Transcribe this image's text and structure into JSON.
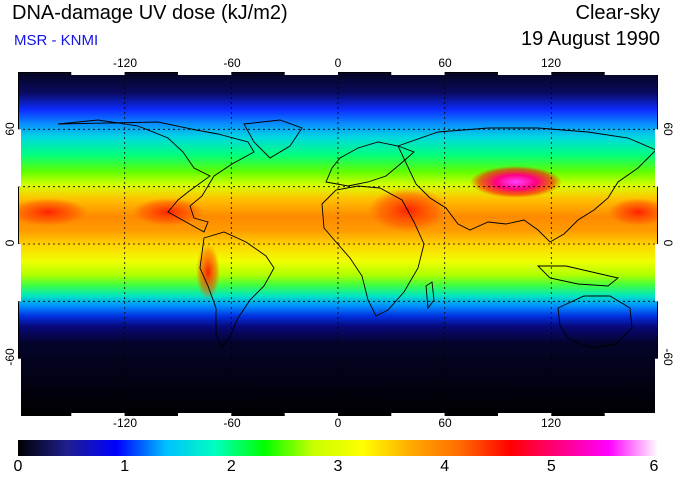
{
  "header": {
    "title": "DNA-damage UV dose (kJ/m2)",
    "source": "MSR - KNMI",
    "mode": "Clear-sky",
    "date": "19 August 1990"
  },
  "map": {
    "projection": "equirectangular",
    "lon_ticks": [
      "-120",
      "-60",
      "0",
      "60",
      "120"
    ],
    "lat_ticks": [
      "60",
      "0",
      "-60"
    ],
    "gridlines": "dashed every 30 degrees",
    "dose_by_latitude_band": [
      {
        "lat": 90,
        "dose": 0.3
      },
      {
        "lat": 70,
        "dose": 0.9
      },
      {
        "lat": 55,
        "dose": 2.0
      },
      {
        "lat": 40,
        "dose": 3.0
      },
      {
        "lat": 30,
        "dose": 3.9
      },
      {
        "lat": 15,
        "dose": 4.2
      },
      {
        "lat": 0,
        "dose": 3.6
      },
      {
        "lat": -15,
        "dose": 3.0
      },
      {
        "lat": -25,
        "dose": 2.2
      },
      {
        "lat": -35,
        "dose": 1.0
      },
      {
        "lat": -50,
        "dose": 0.2
      },
      {
        "lat": -90,
        "dose": 0.0
      }
    ],
    "peak_region": "Tibetan Plateau",
    "peak_dose": 5.5
  },
  "colorbar": {
    "labels": [
      "0",
      "1",
      "2",
      "3",
      "4",
      "5",
      "6"
    ],
    "min": 0,
    "max": 6,
    "colors": [
      "#000000",
      "#1f1f8f",
      "#0000ff",
      "#00bfff",
      "#00ffc0",
      "#00ff00",
      "#c8ff00",
      "#ffff00",
      "#ffaa00",
      "#ff6a00",
      "#ff0000",
      "#ff0080",
      "#ff00ff",
      "#ffffff"
    ]
  }
}
